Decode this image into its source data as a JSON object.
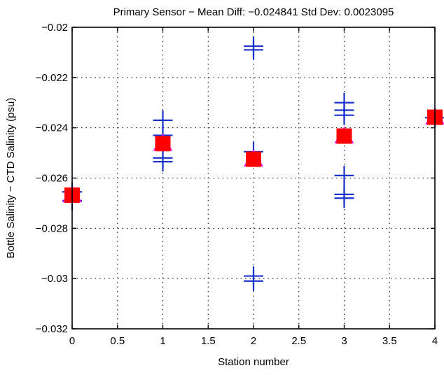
{
  "chart_data": {
    "type": "scatter",
    "title": "Primary Sensor − Mean Diff: −0.024841 Std Dev: 0.0023095",
    "xlabel": "Station number",
    "ylabel": "Bottle Salinity − CTD Salinity (psu)",
    "xlim": [
      0,
      4
    ],
    "ylim": [
      -0.032,
      -0.02
    ],
    "grid": true,
    "legend": "none",
    "x_ticks": [
      0,
      0.5,
      1,
      1.5,
      2,
      2.5,
      3,
      3.5,
      4
    ],
    "x_tick_labels": [
      "0",
      "0.5",
      "1",
      "1.5",
      "2",
      "2.5",
      "3",
      "3.5",
      "4"
    ],
    "y_ticks": [
      -0.032,
      -0.03,
      -0.028,
      -0.026,
      -0.024,
      -0.022,
      -0.02
    ],
    "y_tick_labels": [
      "−0.032",
      "−0.03",
      "−0.028",
      "−0.026",
      "−0.024",
      "−0.022",
      "−0.02"
    ],
    "series": [
      {
        "marker": "plus",
        "color": "#1a33cc",
        "points": [
          {
            "x": 0,
            "y": -0.02655
          },
          {
            "x": 0,
            "y": -0.0269
          },
          {
            "x": 1,
            "y": -0.0237
          },
          {
            "x": 1,
            "y": -0.0243
          },
          {
            "x": 1,
            "y": -0.0252
          },
          {
            "x": 1,
            "y": -0.02535
          },
          {
            "x": 2,
            "y": -0.02075
          },
          {
            "x": 2,
            "y": -0.0209
          },
          {
            "x": 2,
            "y": -0.02495
          },
          {
            "x": 2,
            "y": -0.0299
          },
          {
            "x": 2,
            "y": -0.0301
          },
          {
            "x": 3,
            "y": -0.023
          },
          {
            "x": 3,
            "y": -0.0233
          },
          {
            "x": 3,
            "y": -0.0235
          },
          {
            "x": 3,
            "y": -0.0259
          },
          {
            "x": 3,
            "y": -0.02665
          },
          {
            "x": 3,
            "y": -0.0268
          },
          {
            "x": 4,
            "y": -0.0236
          }
        ]
      },
      {
        "marker": "triangle",
        "color": "#ff00ff",
        "points": [
          {
            "x": 0,
            "y": -0.02668
          },
          {
            "x": 1,
            "y": -0.02463
          },
          {
            "x": 2,
            "y": -0.02525
          },
          {
            "x": 3,
            "y": -0.02433
          },
          {
            "x": 4,
            "y": -0.02358
          }
        ]
      },
      {
        "marker": "square",
        "color": "#ff0000",
        "points": [
          {
            "x": 0,
            "y": -0.02668
          },
          {
            "x": 1,
            "y": -0.02463
          },
          {
            "x": 2,
            "y": -0.02525
          },
          {
            "x": 3,
            "y": -0.02433
          },
          {
            "x": 4,
            "y": -0.02358
          }
        ]
      }
    ]
  }
}
